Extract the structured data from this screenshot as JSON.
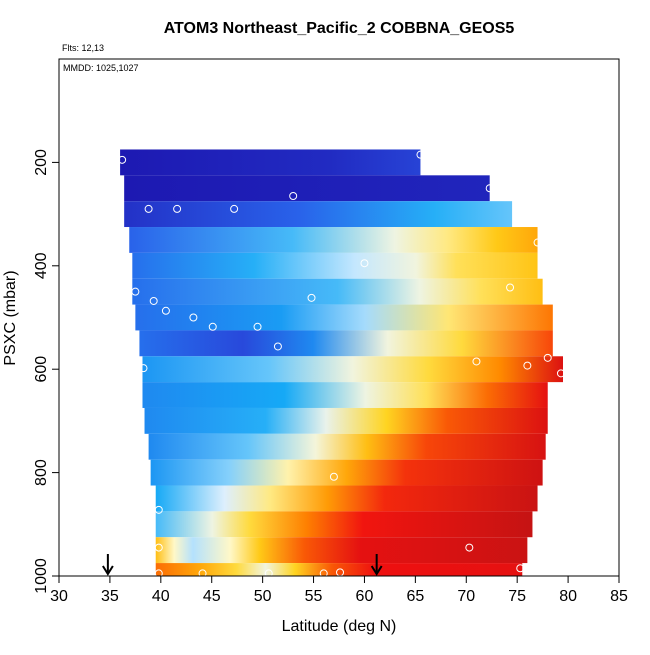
{
  "chart_data": {
    "type": "heatmap",
    "title": "ATOM3 Northeast_Pacific_2 COBBNA_GEOS5",
    "flights_note": "Flts: 12,13",
    "date_note": "MMDD: 1025,1027",
    "xlabel": "Latitude (deg N)",
    "ylabel": "PSXC (mbar)",
    "xlim": [
      30,
      85
    ],
    "ylim": [
      1000,
      0
    ],
    "x_ticks": [
      30,
      35,
      40,
      45,
      50,
      55,
      60,
      65,
      70,
      75,
      80,
      85
    ],
    "y_ticks": [
      200,
      400,
      600,
      800,
      1000
    ],
    "grid": false,
    "color_scale": [
      "#1a0da8",
      "#2c58e8",
      "#16a9f6",
      "#dcefff",
      "#fff8c8",
      "#ffd21a",
      "#ff8a00",
      "#f01010",
      "#b81414"
    ],
    "rows": [
      {
        "p": 200,
        "x0": 36.0,
        "x1": 65.5,
        "stops": [
          [
            0,
            0.02
          ],
          [
            0.7,
            0.05
          ],
          [
            1,
            0.09
          ]
        ]
      },
      {
        "p": 250,
        "x0": 36.4,
        "x1": 72.3,
        "stops": [
          [
            0,
            0.02
          ],
          [
            1,
            0.04
          ]
        ]
      },
      {
        "p": 300,
        "x0": 36.4,
        "x1": 74.5,
        "stops": [
          [
            0,
            0.06
          ],
          [
            0.45,
            0.14
          ],
          [
            0.8,
            0.26
          ],
          [
            1,
            0.3
          ]
        ]
      },
      {
        "p": 350,
        "x0": 36.9,
        "x1": 77.0,
        "stops": [
          [
            0,
            0.14
          ],
          [
            0.4,
            0.28
          ],
          [
            0.65,
            0.44
          ],
          [
            0.78,
            0.55
          ],
          [
            0.9,
            0.64
          ],
          [
            1,
            0.7
          ]
        ]
      },
      {
        "p": 400,
        "x0": 37.2,
        "x1": 77.0,
        "stops": [
          [
            0,
            0.16
          ],
          [
            0.3,
            0.26
          ],
          [
            0.55,
            0.36
          ],
          [
            0.7,
            0.45
          ],
          [
            0.8,
            0.58
          ],
          [
            1,
            0.65
          ]
        ]
      },
      {
        "p": 450,
        "x0": 37.2,
        "x1": 77.5,
        "stops": [
          [
            0,
            0.16
          ],
          [
            0.5,
            0.28
          ],
          [
            0.7,
            0.44
          ],
          [
            0.85,
            0.58
          ],
          [
            1,
            0.66
          ]
        ]
      },
      {
        "p": 500,
        "x0": 37.5,
        "x1": 78.5,
        "stops": [
          [
            0,
            0.16
          ],
          [
            0.35,
            0.23
          ],
          [
            0.55,
            0.34
          ],
          [
            0.75,
            0.56
          ],
          [
            1,
            0.77
          ]
        ]
      },
      {
        "p": 550,
        "x0": 37.9,
        "x1": 78.5,
        "stops": [
          [
            0,
            0.16
          ],
          [
            0.25,
            0.1
          ],
          [
            0.42,
            0.2
          ],
          [
            0.6,
            0.45
          ],
          [
            0.78,
            0.6
          ],
          [
            1,
            0.82
          ]
        ]
      },
      {
        "p": 600,
        "x0": 38.2,
        "x1": 79.5,
        "stops": [
          [
            0,
            0.22
          ],
          [
            0.3,
            0.3
          ],
          [
            0.5,
            0.45
          ],
          [
            0.68,
            0.6
          ],
          [
            0.85,
            0.75
          ],
          [
            1,
            0.92
          ]
        ]
      },
      {
        "p": 650,
        "x0": 38.2,
        "x1": 78.0,
        "stops": [
          [
            0,
            0.2
          ],
          [
            0.35,
            0.25
          ],
          [
            0.55,
            0.44
          ],
          [
            0.7,
            0.58
          ],
          [
            0.85,
            0.78
          ],
          [
            1,
            0.9
          ]
        ]
      },
      {
        "p": 700,
        "x0": 38.4,
        "x1": 78.0,
        "stops": [
          [
            0,
            0.2
          ],
          [
            0.3,
            0.26
          ],
          [
            0.45,
            0.42
          ],
          [
            0.6,
            0.62
          ],
          [
            0.75,
            0.8
          ],
          [
            1,
            0.92
          ]
        ]
      },
      {
        "p": 750,
        "x0": 38.8,
        "x1": 77.8,
        "stops": [
          [
            0,
            0.2
          ],
          [
            0.25,
            0.3
          ],
          [
            0.42,
            0.46
          ],
          [
            0.55,
            0.66
          ],
          [
            0.7,
            0.82
          ],
          [
            1,
            0.93
          ]
        ]
      },
      {
        "p": 800,
        "x0": 39.0,
        "x1": 77.5,
        "stops": [
          [
            0,
            0.22
          ],
          [
            0.2,
            0.32
          ],
          [
            0.35,
            0.52
          ],
          [
            0.5,
            0.7
          ],
          [
            0.65,
            0.84
          ],
          [
            1,
            0.95
          ]
        ]
      },
      {
        "p": 850,
        "x0": 39.5,
        "x1": 77.0,
        "stops": [
          [
            0,
            0.25
          ],
          [
            0.18,
            0.38
          ],
          [
            0.3,
            0.55
          ],
          [
            0.45,
            0.72
          ],
          [
            0.6,
            0.85
          ],
          [
            1,
            0.96
          ]
        ]
      },
      {
        "p": 900,
        "x0": 39.5,
        "x1": 76.5,
        "stops": [
          [
            0,
            0.28
          ],
          [
            0.15,
            0.44
          ],
          [
            0.25,
            0.6
          ],
          [
            0.4,
            0.76
          ],
          [
            0.55,
            0.87
          ],
          [
            1,
            0.97
          ]
        ]
      },
      {
        "p": 950,
        "x0": 39.5,
        "x1": 76.0,
        "stops": [
          [
            0,
            0.66
          ],
          [
            0.05,
            0.5
          ],
          [
            0.1,
            0.35
          ],
          [
            0.2,
            0.5
          ],
          [
            0.28,
            0.64
          ],
          [
            0.4,
            0.8
          ],
          [
            0.55,
            0.9
          ],
          [
            1,
            0.96
          ]
        ]
      },
      {
        "p": 1000,
        "x0": 39.5,
        "x1": 75.5,
        "stops": [
          [
            0,
            0.78
          ],
          [
            0.12,
            0.7
          ],
          [
            0.22,
            0.6
          ],
          [
            0.3,
            0.45
          ],
          [
            0.38,
            0.62
          ],
          [
            0.48,
            0.8
          ],
          [
            0.6,
            0.88
          ],
          [
            1,
            0.9
          ]
        ]
      }
    ],
    "observations": [
      {
        "x": 36.2,
        "y": 195
      },
      {
        "x": 65.5,
        "y": 185
      },
      {
        "x": 72.3,
        "y": 250
      },
      {
        "x": 38.8,
        "y": 290
      },
      {
        "x": 41.6,
        "y": 290
      },
      {
        "x": 47.2,
        "y": 290
      },
      {
        "x": 53.0,
        "y": 265
      },
      {
        "x": 77.0,
        "y": 355
      },
      {
        "x": 60.0,
        "y": 395
      },
      {
        "x": 37.5,
        "y": 450
      },
      {
        "x": 39.3,
        "y": 468
      },
      {
        "x": 40.5,
        "y": 487
      },
      {
        "x": 54.8,
        "y": 462
      },
      {
        "x": 74.3,
        "y": 442
      },
      {
        "x": 43.2,
        "y": 500
      },
      {
        "x": 45.1,
        "y": 518
      },
      {
        "x": 49.5,
        "y": 518
      },
      {
        "x": 51.5,
        "y": 556
      },
      {
        "x": 38.3,
        "y": 598
      },
      {
        "x": 71.0,
        "y": 585
      },
      {
        "x": 76.0,
        "y": 593
      },
      {
        "x": 78.0,
        "y": 578
      },
      {
        "x": 79.3,
        "y": 608
      },
      {
        "x": 57.0,
        "y": 808
      },
      {
        "x": 39.8,
        "y": 872
      },
      {
        "x": 39.8,
        "y": 945
      },
      {
        "x": 70.3,
        "y": 945
      },
      {
        "x": 39.8,
        "y": 995
      },
      {
        "x": 44.1,
        "y": 995
      },
      {
        "x": 50.6,
        "y": 995
      },
      {
        "x": 56.0,
        "y": 995
      },
      {
        "x": 57.6,
        "y": 993
      },
      {
        "x": 75.3,
        "y": 985
      }
    ],
    "markers": [
      {
        "x": 34.8,
        "y": 1000
      },
      {
        "x": 61.2,
        "y": 1000
      }
    ]
  }
}
